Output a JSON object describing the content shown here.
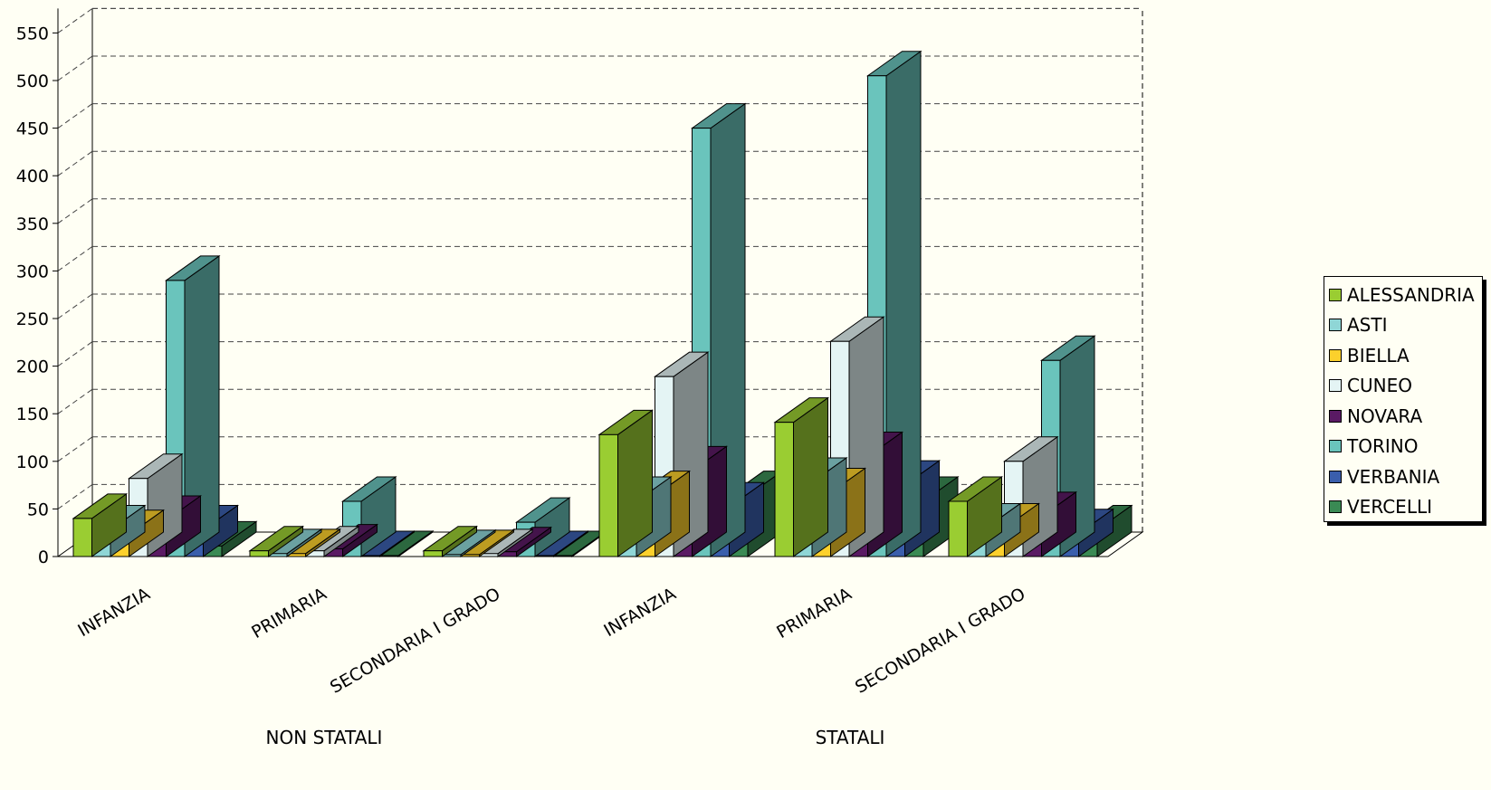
{
  "chart_data": {
    "type": "bar",
    "categories": [
      "INFANZIA",
      "PRIMARIA",
      "SECONDARIA I GRADO",
      "INFANZIA",
      "PRIMARIA",
      "SECONDARIA I GRADO"
    ],
    "groups": [
      {
        "label": "NON STATALI",
        "categories": [
          0,
          1,
          2
        ]
      },
      {
        "label": "STATALI",
        "categories": [
          3,
          4,
          5
        ]
      }
    ],
    "series": [
      {
        "name": "ALESSANDRIA",
        "color": "#9acd32",
        "values": [
          40,
          6,
          6,
          128,
          141,
          58
        ]
      },
      {
        "name": "ASTI",
        "color": "#8fd6d6",
        "values": [
          28,
          3,
          2,
          58,
          78,
          30
        ]
      },
      {
        "name": "BIELLA",
        "color": "#fcd02c",
        "values": [
          23,
          3,
          2,
          64,
          67,
          30
        ]
      },
      {
        "name": "CUNEO",
        "color": "#e4f4f4",
        "values": [
          82,
          6,
          3,
          189,
          226,
          100
        ]
      },
      {
        "name": "NOVARA",
        "color": "#5a1a64",
        "values": [
          38,
          8,
          5,
          90,
          105,
          42
        ]
      },
      {
        "name": "TORINO",
        "color": "#6ac4bc",
        "values": [
          290,
          58,
          36,
          450,
          505,
          206
        ]
      },
      {
        "name": "VERBANIA",
        "color": "#3a5eac",
        "values": [
          28,
          1,
          1,
          52,
          75,
          24
        ]
      },
      {
        "name": "VERCELLI",
        "color": "#3a8a54",
        "values": [
          11,
          1,
          1,
          64,
          58,
          28
        ]
      }
    ],
    "yticks": [
      "0",
      "50",
      "100",
      "150",
      "200",
      "250",
      "300",
      "350",
      "400",
      "450",
      "500",
      "550"
    ],
    "ylim": [
      0,
      550
    ],
    "grid": true,
    "legend": "right",
    "title": "",
    "xlabel": "",
    "ylabel": ""
  }
}
